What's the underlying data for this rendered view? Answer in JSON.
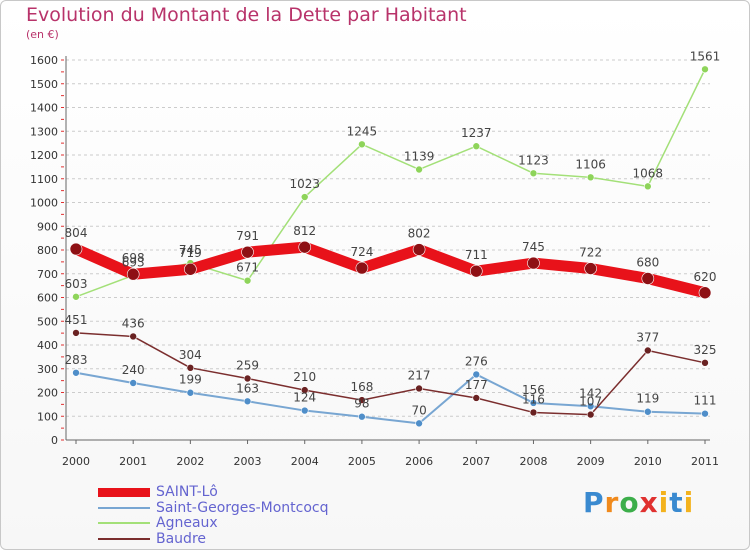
{
  "header": {
    "title": "Evolution du Montant de la Dette par Habitant",
    "subtitle": "(en €)"
  },
  "logo": {
    "text": "Proxiti"
  },
  "chart_data": {
    "type": "line",
    "title": "Evolution du Montant de la Dette par Habitant",
    "ylabel": "(en €)",
    "xlabel": "",
    "categories": [
      "2000",
      "2001",
      "2002",
      "2003",
      "2004",
      "2005",
      "2006",
      "2007",
      "2008",
      "2009",
      "2010",
      "2011"
    ],
    "ylim": [
      0,
      1600
    ],
    "yticks": [
      0,
      100,
      200,
      300,
      400,
      500,
      600,
      700,
      800,
      900,
      1000,
      1100,
      1200,
      1300,
      1400,
      1500,
      1600
    ],
    "grid": "horizontal-dashed",
    "legend_position": "bottom-left",
    "series": [
      {
        "name": "SAINT-Lô",
        "color": "#e8121a",
        "marker": "#8e1014",
        "values": [
          804,
          698,
          719,
          791,
          812,
          724,
          802,
          711,
          745,
          722,
          680,
          620
        ]
      },
      {
        "name": "Saint-Georges-Montcocq",
        "color": "#78a6d2",
        "marker": "#4f8ec9",
        "values": [
          283,
          240,
          199,
          163,
          124,
          98,
          70,
          276,
          156,
          142,
          119,
          111
        ]
      },
      {
        "name": "Agneaux",
        "color": "#a3e078",
        "marker": "#8ed45a",
        "values": [
          603,
          693,
          745,
          671,
          1023,
          1245,
          1139,
          1237,
          1123,
          1106,
          1068,
          1561
        ]
      },
      {
        "name": "Baudre",
        "color": "#7b2e2e",
        "marker": "#6a2222",
        "values": [
          451,
          436,
          304,
          259,
          210,
          168,
          217,
          177,
          116,
          107,
          377,
          325
        ]
      }
    ]
  }
}
